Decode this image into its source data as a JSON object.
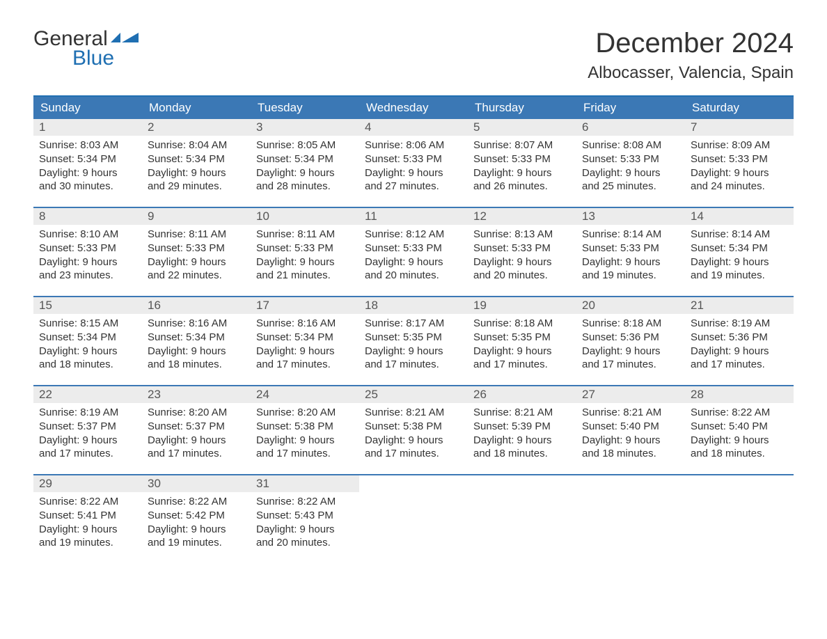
{
  "logo": {
    "text_general": "General",
    "text_blue": "Blue",
    "icon_color": "#1f6fb2"
  },
  "title": {
    "month": "December 2024",
    "location": "Albocasser, Valencia, Spain",
    "title_fontsize": 40,
    "location_fontsize": 24,
    "text_color": "#333333"
  },
  "calendar": {
    "header_bg": "#3b78b5",
    "header_text_color": "#ffffff",
    "row_border_color": "#3b78b5",
    "daynum_bg": "#ececec",
    "daynum_color": "#555555",
    "body_text_color": "#333333",
    "body_fontsize": 15,
    "weekdays": [
      "Sunday",
      "Monday",
      "Tuesday",
      "Wednesday",
      "Thursday",
      "Friday",
      "Saturday"
    ],
    "weeks": [
      [
        {
          "day": "1",
          "sunrise": "Sunrise: 8:03 AM",
          "sunset": "Sunset: 5:34 PM",
          "daylight1": "Daylight: 9 hours",
          "daylight2": "and 30 minutes."
        },
        {
          "day": "2",
          "sunrise": "Sunrise: 8:04 AM",
          "sunset": "Sunset: 5:34 PM",
          "daylight1": "Daylight: 9 hours",
          "daylight2": "and 29 minutes."
        },
        {
          "day": "3",
          "sunrise": "Sunrise: 8:05 AM",
          "sunset": "Sunset: 5:34 PM",
          "daylight1": "Daylight: 9 hours",
          "daylight2": "and 28 minutes."
        },
        {
          "day": "4",
          "sunrise": "Sunrise: 8:06 AM",
          "sunset": "Sunset: 5:33 PM",
          "daylight1": "Daylight: 9 hours",
          "daylight2": "and 27 minutes."
        },
        {
          "day": "5",
          "sunrise": "Sunrise: 8:07 AM",
          "sunset": "Sunset: 5:33 PM",
          "daylight1": "Daylight: 9 hours",
          "daylight2": "and 26 minutes."
        },
        {
          "day": "6",
          "sunrise": "Sunrise: 8:08 AM",
          "sunset": "Sunset: 5:33 PM",
          "daylight1": "Daylight: 9 hours",
          "daylight2": "and 25 minutes."
        },
        {
          "day": "7",
          "sunrise": "Sunrise: 8:09 AM",
          "sunset": "Sunset: 5:33 PM",
          "daylight1": "Daylight: 9 hours",
          "daylight2": "and 24 minutes."
        }
      ],
      [
        {
          "day": "8",
          "sunrise": "Sunrise: 8:10 AM",
          "sunset": "Sunset: 5:33 PM",
          "daylight1": "Daylight: 9 hours",
          "daylight2": "and 23 minutes."
        },
        {
          "day": "9",
          "sunrise": "Sunrise: 8:11 AM",
          "sunset": "Sunset: 5:33 PM",
          "daylight1": "Daylight: 9 hours",
          "daylight2": "and 22 minutes."
        },
        {
          "day": "10",
          "sunrise": "Sunrise: 8:11 AM",
          "sunset": "Sunset: 5:33 PM",
          "daylight1": "Daylight: 9 hours",
          "daylight2": "and 21 minutes."
        },
        {
          "day": "11",
          "sunrise": "Sunrise: 8:12 AM",
          "sunset": "Sunset: 5:33 PM",
          "daylight1": "Daylight: 9 hours",
          "daylight2": "and 20 minutes."
        },
        {
          "day": "12",
          "sunrise": "Sunrise: 8:13 AM",
          "sunset": "Sunset: 5:33 PM",
          "daylight1": "Daylight: 9 hours",
          "daylight2": "and 20 minutes."
        },
        {
          "day": "13",
          "sunrise": "Sunrise: 8:14 AM",
          "sunset": "Sunset: 5:33 PM",
          "daylight1": "Daylight: 9 hours",
          "daylight2": "and 19 minutes."
        },
        {
          "day": "14",
          "sunrise": "Sunrise: 8:14 AM",
          "sunset": "Sunset: 5:34 PM",
          "daylight1": "Daylight: 9 hours",
          "daylight2": "and 19 minutes."
        }
      ],
      [
        {
          "day": "15",
          "sunrise": "Sunrise: 8:15 AM",
          "sunset": "Sunset: 5:34 PM",
          "daylight1": "Daylight: 9 hours",
          "daylight2": "and 18 minutes."
        },
        {
          "day": "16",
          "sunrise": "Sunrise: 8:16 AM",
          "sunset": "Sunset: 5:34 PM",
          "daylight1": "Daylight: 9 hours",
          "daylight2": "and 18 minutes."
        },
        {
          "day": "17",
          "sunrise": "Sunrise: 8:16 AM",
          "sunset": "Sunset: 5:34 PM",
          "daylight1": "Daylight: 9 hours",
          "daylight2": "and 17 minutes."
        },
        {
          "day": "18",
          "sunrise": "Sunrise: 8:17 AM",
          "sunset": "Sunset: 5:35 PM",
          "daylight1": "Daylight: 9 hours",
          "daylight2": "and 17 minutes."
        },
        {
          "day": "19",
          "sunrise": "Sunrise: 8:18 AM",
          "sunset": "Sunset: 5:35 PM",
          "daylight1": "Daylight: 9 hours",
          "daylight2": "and 17 minutes."
        },
        {
          "day": "20",
          "sunrise": "Sunrise: 8:18 AM",
          "sunset": "Sunset: 5:36 PM",
          "daylight1": "Daylight: 9 hours",
          "daylight2": "and 17 minutes."
        },
        {
          "day": "21",
          "sunrise": "Sunrise: 8:19 AM",
          "sunset": "Sunset: 5:36 PM",
          "daylight1": "Daylight: 9 hours",
          "daylight2": "and 17 minutes."
        }
      ],
      [
        {
          "day": "22",
          "sunrise": "Sunrise: 8:19 AM",
          "sunset": "Sunset: 5:37 PM",
          "daylight1": "Daylight: 9 hours",
          "daylight2": "and 17 minutes."
        },
        {
          "day": "23",
          "sunrise": "Sunrise: 8:20 AM",
          "sunset": "Sunset: 5:37 PM",
          "daylight1": "Daylight: 9 hours",
          "daylight2": "and 17 minutes."
        },
        {
          "day": "24",
          "sunrise": "Sunrise: 8:20 AM",
          "sunset": "Sunset: 5:38 PM",
          "daylight1": "Daylight: 9 hours",
          "daylight2": "and 17 minutes."
        },
        {
          "day": "25",
          "sunrise": "Sunrise: 8:21 AM",
          "sunset": "Sunset: 5:38 PM",
          "daylight1": "Daylight: 9 hours",
          "daylight2": "and 17 minutes."
        },
        {
          "day": "26",
          "sunrise": "Sunrise: 8:21 AM",
          "sunset": "Sunset: 5:39 PM",
          "daylight1": "Daylight: 9 hours",
          "daylight2": "and 18 minutes."
        },
        {
          "day": "27",
          "sunrise": "Sunrise: 8:21 AM",
          "sunset": "Sunset: 5:40 PM",
          "daylight1": "Daylight: 9 hours",
          "daylight2": "and 18 minutes."
        },
        {
          "day": "28",
          "sunrise": "Sunrise: 8:22 AM",
          "sunset": "Sunset: 5:40 PM",
          "daylight1": "Daylight: 9 hours",
          "daylight2": "and 18 minutes."
        }
      ],
      [
        {
          "day": "29",
          "sunrise": "Sunrise: 8:22 AM",
          "sunset": "Sunset: 5:41 PM",
          "daylight1": "Daylight: 9 hours",
          "daylight2": "and 19 minutes."
        },
        {
          "day": "30",
          "sunrise": "Sunrise: 8:22 AM",
          "sunset": "Sunset: 5:42 PM",
          "daylight1": "Daylight: 9 hours",
          "daylight2": "and 19 minutes."
        },
        {
          "day": "31",
          "sunrise": "Sunrise: 8:22 AM",
          "sunset": "Sunset: 5:43 PM",
          "daylight1": "Daylight: 9 hours",
          "daylight2": "and 20 minutes."
        },
        {
          "day": "",
          "empty": true
        },
        {
          "day": "",
          "empty": true
        },
        {
          "day": "",
          "empty": true
        },
        {
          "day": "",
          "empty": true
        }
      ]
    ]
  }
}
